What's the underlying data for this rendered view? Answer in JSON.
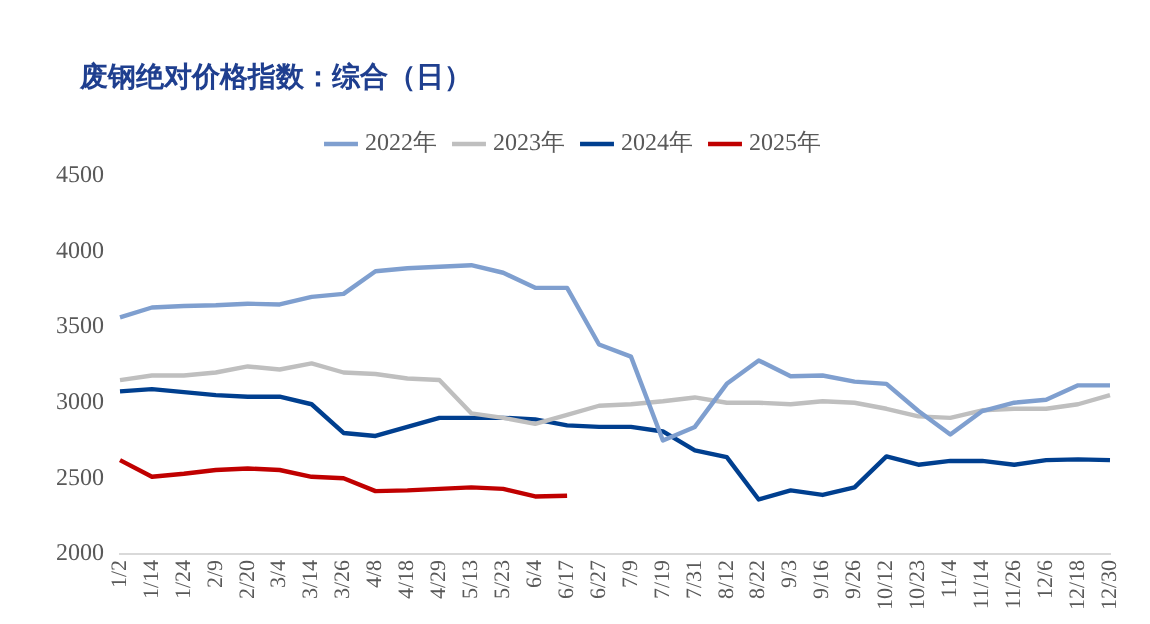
{
  "chart_data": {
    "type": "line",
    "title": "废钢绝对价格指数：综合（日）",
    "categories": [
      "1/2",
      "1/14",
      "1/24",
      "2/9",
      "2/20",
      "3/4",
      "3/14",
      "3/26",
      "4/8",
      "4/18",
      "4/29",
      "5/13",
      "5/23",
      "6/4",
      "6/17",
      "6/27",
      "7/9",
      "7/19",
      "7/31",
      "8/12",
      "8/22",
      "9/3",
      "9/16",
      "9/26",
      "10/12",
      "10/23",
      "11/4",
      "11/14",
      "11/26",
      "12/6",
      "12/18",
      "12/30"
    ],
    "series": [
      {
        "name": "2022年",
        "color": "#7f9fcf",
        "values": [
          3565,
          3630,
          3640,
          3645,
          3655,
          3650,
          3700,
          3720,
          3870,
          3890,
          3900,
          3910,
          3860,
          3760,
          3760,
          3385,
          3305,
          2750,
          2840,
          3125,
          3280,
          3175,
          3180,
          3140,
          3125,
          2945,
          2790,
          2945,
          3000,
          3020,
          3115,
          3115
        ]
      },
      {
        "name": "2023年",
        "color": "#bfbfbf",
        "values": [
          3150,
          3180,
          3180,
          3200,
          3240,
          3220,
          3260,
          3200,
          3190,
          3160,
          3150,
          2930,
          2900,
          2860,
          2920,
          2980,
          2990,
          3010,
          3035,
          3000,
          3000,
          2990,
          3010,
          3000,
          2960,
          2910,
          2900,
          2950,
          2960,
          2960,
          2990,
          3050
        ]
      },
      {
        "name": "2024年",
        "color": "#003f8f",
        "values": [
          3075,
          3090,
          3070,
          3050,
          3040,
          3040,
          2990,
          2800,
          2780,
          2840,
          2900,
          2900,
          2900,
          2890,
          2850,
          2840,
          2840,
          2810,
          2685,
          2640,
          2360,
          2420,
          2390,
          2440,
          2645,
          2590,
          2615,
          2615,
          2590,
          2620,
          2625,
          2620
        ]
      },
      {
        "name": "2025年",
        "color": "#c00000",
        "values": [
          2620,
          2510,
          2530,
          2555,
          2565,
          2555,
          2510,
          2500,
          2415,
          2420,
          2430,
          2440,
          2430,
          2380,
          2385,
          null,
          null,
          null,
          null,
          null,
          null,
          null,
          null,
          null,
          null,
          null,
          null,
          null,
          null,
          null,
          null,
          null
        ]
      }
    ],
    "ylim": [
      2000,
      4500
    ],
    "yticks": [
      2000,
      2500,
      3000,
      3500,
      4000,
      4500
    ],
    "grid": false,
    "legend": "top",
    "marker": "none",
    "line_style": "solid"
  }
}
